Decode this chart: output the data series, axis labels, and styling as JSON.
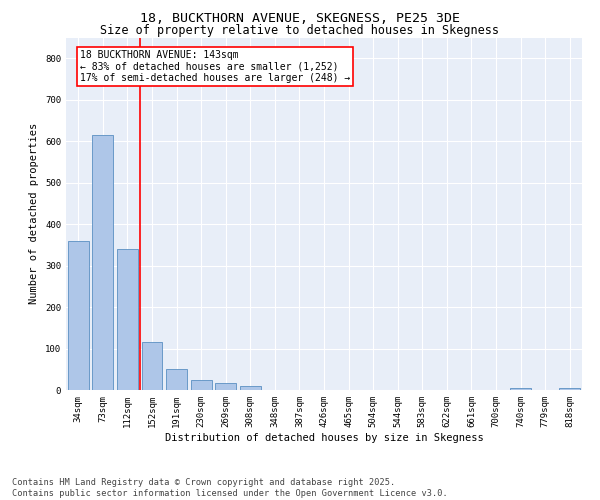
{
  "title_line1": "18, BUCKTHORN AVENUE, SKEGNESS, PE25 3DE",
  "title_line2": "Size of property relative to detached houses in Skegness",
  "xlabel": "Distribution of detached houses by size in Skegness",
  "ylabel": "Number of detached properties",
  "categories": [
    "34sqm",
    "73sqm",
    "112sqm",
    "152sqm",
    "191sqm",
    "230sqm",
    "269sqm",
    "308sqm",
    "348sqm",
    "387sqm",
    "426sqm",
    "465sqm",
    "504sqm",
    "544sqm",
    "583sqm",
    "622sqm",
    "661sqm",
    "700sqm",
    "740sqm",
    "779sqm",
    "818sqm"
  ],
  "bar_heights": [
    360,
    615,
    340,
    115,
    50,
    25,
    18,
    10,
    0,
    0,
    0,
    0,
    0,
    0,
    0,
    0,
    0,
    0,
    5,
    0,
    5
  ],
  "bar_color": "#aec6e8",
  "bar_edge_color": "#5a8fc2",
  "annotation_text": "18 BUCKTHORN AVENUE: 143sqm\n← 83% of detached houses are smaller (1,252)\n17% of semi-detached houses are larger (248) →",
  "annotation_box_color": "white",
  "annotation_box_edge_color": "red",
  "vline_color": "red",
  "ylim": [
    0,
    850
  ],
  "yticks": [
    0,
    100,
    200,
    300,
    400,
    500,
    600,
    700,
    800
  ],
  "background_color": "#e8eef8",
  "footer_line1": "Contains HM Land Registry data © Crown copyright and database right 2025.",
  "footer_line2": "Contains public sector information licensed under the Open Government Licence v3.0.",
  "title_fontsize": 9.5,
  "subtitle_fontsize": 8.5,
  "axis_label_fontsize": 7.5,
  "tick_fontsize": 6.5,
  "annotation_fontsize": 7,
  "footer_fontsize": 6.2
}
